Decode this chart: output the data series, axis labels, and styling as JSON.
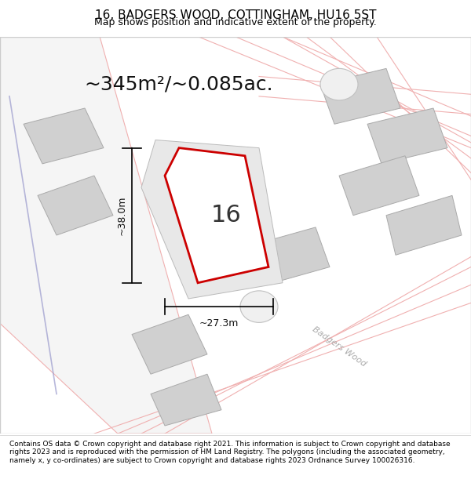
{
  "title": "16, BADGERS WOOD, COTTINGHAM, HU16 5ST",
  "subtitle": "Map shows position and indicative extent of the property.",
  "area_text": "~345m²/~0.085ac.",
  "number_label": "16",
  "dim_width": "~27.3m",
  "dim_height": "~38.0m",
  "road_label": "Badgers Wood",
  "footer": "Contains OS data © Crown copyright and database right 2021. This information is subject to Crown copyright and database rights 2023 and is reproduced with the permission of HM Land Registry. The polygons (including the associated geometry, namely x, y co-ordinates) are subject to Crown copyright and database rights 2023 Ordnance Survey 100026316.",
  "bg_color": "#ffffff",
  "map_bg": "#f8f8f8",
  "plot_fill": "#ffffff",
  "plot_edge": "#cc0000",
  "building_fill": "#d8d8d8",
  "building_edge": "#aaaaaa",
  "road_line_color": "#f0b0b0",
  "road_line_color2": "#c0c0c0",
  "dim_line_color": "#000000",
  "title_fontsize": 11,
  "subtitle_fontsize": 9,
  "area_fontsize": 18,
  "number_fontsize": 22,
  "footer_fontsize": 6.5
}
